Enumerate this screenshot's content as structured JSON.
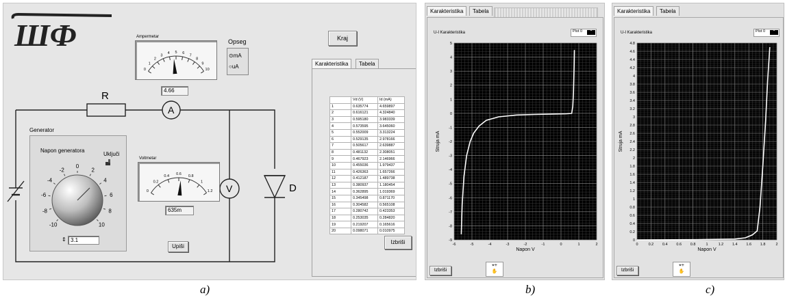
{
  "panel_a": {
    "logo_text": "ШФ",
    "ammeter": {
      "label": "Ampermetar",
      "scale": [
        "0",
        "1",
        "2",
        "3",
        "4",
        "5",
        "6",
        "7",
        "8",
        "9",
        "10"
      ],
      "value": "4.66",
      "needle_fraction": 0.466
    },
    "range": {
      "label": "Opseg",
      "options": [
        "mA",
        "uA"
      ],
      "selected": "mA"
    },
    "exit_button": "Kraj",
    "resistor_label": "R",
    "ammeter_symbol": "A",
    "voltmeter_symbol": "V",
    "diode_label": "D",
    "generator": {
      "label": "Generator",
      "knob_label": "Napon generatora",
      "switch_label": "Uključi",
      "scale": [
        "-10",
        "-8",
        "-6",
        "-4",
        "-2",
        "0",
        "2",
        "4",
        "6",
        "8",
        "10"
      ],
      "value": "3.1"
    },
    "voltmeter": {
      "label": "Voltmetar",
      "scale": [
        "0",
        "0.2",
        "0.4",
        "0.6",
        "0.8",
        "1",
        "1.2"
      ],
      "value": "635m",
      "needle_fraction": 0.53
    },
    "write_button": "Upiši",
    "tabs": [
      "Karakteristika",
      "Tabela"
    ],
    "table": {
      "headers": [
        "",
        "Vd (V)",
        "Id (mA)"
      ],
      "rows": [
        [
          "1",
          "0.635774",
          "4.659897"
        ],
        [
          "2",
          "0.616121",
          "4.324840"
        ],
        [
          "3",
          "0.595180",
          "3.983339"
        ],
        [
          "4",
          "0.573595",
          "3.645060"
        ],
        [
          "5",
          "0.552009",
          "3.313224"
        ],
        [
          "6",
          "0.529135",
          "2.978166"
        ],
        [
          "7",
          "0.505617",
          "2.639887"
        ],
        [
          "8",
          "0.481132",
          "2.308051"
        ],
        [
          "9",
          "0.467923",
          "2.146966"
        ],
        [
          "10",
          "0.455036",
          "1.979437"
        ],
        [
          "11",
          "0.426363",
          "1.657266"
        ],
        [
          "12",
          "0.412187",
          "1.489738"
        ],
        [
          "13",
          "0.380937",
          "1.180454"
        ],
        [
          "14",
          "0.362895",
          "1.019369"
        ],
        [
          "15",
          "0.345498",
          "0.871170"
        ],
        [
          "16",
          "0.304582",
          "0.565108"
        ],
        [
          "17",
          "0.280742",
          "0.423353"
        ],
        [
          "18",
          "0.253035",
          "0.284820"
        ],
        [
          "19",
          "0.219207",
          "0.165616"
        ],
        [
          "20",
          "0.098071",
          "0.010975"
        ]
      ]
    },
    "clear_button": "Izbriši",
    "caption": "a)"
  },
  "panel_b": {
    "tabs": [
      "Karakteristika",
      "Tabela"
    ],
    "chart_title": "U-I Karakteristika",
    "plot_legend": "Plot 0",
    "clear_button": "Izbriši",
    "caption": "b)"
  },
  "panel_c": {
    "tabs": [
      "Karakteristika",
      "Tabela"
    ],
    "chart_title": "U-I Karakteristika",
    "plot_legend": "Plot 0",
    "clear_button": "Izbriši",
    "caption": "c)"
  },
  "chart_data": [
    {
      "type": "line",
      "title": "U-I Karakteristika",
      "xlabel": "Napon V",
      "ylabel": "Struja mA",
      "xlim": [
        -6,
        2
      ],
      "ylim": [
        -9,
        5
      ],
      "xticks": [
        -6,
        -5,
        -4,
        -3,
        -2,
        -1,
        0,
        1,
        2
      ],
      "yticks": [
        5,
        4,
        3,
        2,
        1,
        0,
        -1,
        -2,
        -3,
        -4,
        -5,
        -6,
        -7,
        -8,
        -9
      ],
      "grid": true,
      "legend": "top-right",
      "series": [
        {
          "name": "Plot 0",
          "x": [
            -5.6,
            -5.55,
            -5.45,
            -5.3,
            -5.1,
            -4.9,
            -4.6,
            -4.2,
            -3.5,
            -2.5,
            -1.5,
            -0.5,
            0.3,
            0.6,
            0.66,
            0.7,
            0.72,
            0.74,
            0.75
          ],
          "y": [
            -8.6,
            -6.5,
            -4.5,
            -3.0,
            -2.0,
            -1.4,
            -0.9,
            -0.5,
            -0.25,
            -0.12,
            -0.08,
            -0.05,
            -0.03,
            0.0,
            0.5,
            1.5,
            2.5,
            3.5,
            4.5
          ]
        }
      ]
    },
    {
      "type": "line",
      "title": "U-I Karakteristika",
      "xlabel": "Napon V",
      "ylabel": "Struja mA",
      "xlim": [
        0,
        2
      ],
      "ylim": [
        0,
        4.8
      ],
      "xticks": [
        0,
        0.2,
        0.4,
        0.6,
        0.8,
        1,
        1.2,
        1.4,
        1.6,
        1.8,
        2
      ],
      "yticks": [
        4.8,
        4.6,
        4.4,
        4.2,
        4,
        3.8,
        3.6,
        3.4,
        3.2,
        3,
        2.8,
        2.6,
        2.4,
        2.2,
        2,
        1.8,
        1.6,
        1.4,
        1.2,
        1,
        0.8,
        0.6,
        0.4,
        0.2,
        0
      ],
      "grid": true,
      "legend": "top-right",
      "series": [
        {
          "name": "Plot 0",
          "x": [
            0,
            0.8,
            1.4,
            1.55,
            1.65,
            1.72,
            1.76,
            1.8,
            1.84,
            1.87,
            1.9
          ],
          "y": [
            0,
            0.005,
            0.02,
            0.05,
            0.12,
            0.22,
            0.8,
            1.8,
            2.9,
            3.9,
            4.7
          ]
        }
      ]
    }
  ]
}
